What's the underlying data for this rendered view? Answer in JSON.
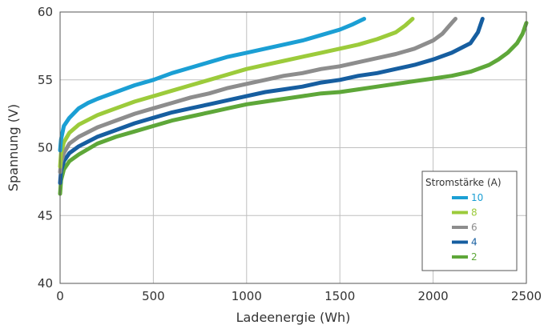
{
  "chart_data": {
    "type": "line",
    "xlabel": "Ladeenergie (Wh)",
    "ylabel": "Spannung (V)",
    "xlim": [
      0,
      2500
    ],
    "ylim": [
      40,
      60
    ],
    "xticks": [
      0,
      500,
      1000,
      1500,
      2000,
      2500
    ],
    "yticks": [
      40,
      45,
      50,
      55,
      60
    ],
    "grid": true,
    "legend": {
      "title": "Stromstärke (A)",
      "placement": "bottom-right"
    },
    "series": [
      {
        "name": "10",
        "color": "#1b9fd4",
        "x": [
          0,
          5,
          20,
          50,
          100,
          150,
          200,
          300,
          400,
          500,
          600,
          700,
          800,
          900,
          1000,
          1100,
          1200,
          1300,
          1400,
          1500,
          1570,
          1630
        ],
        "y": [
          49.8,
          50.6,
          51.6,
          52.2,
          52.9,
          53.3,
          53.6,
          54.1,
          54.6,
          55.0,
          55.5,
          55.9,
          56.3,
          56.7,
          57.0,
          57.3,
          57.6,
          57.9,
          58.3,
          58.7,
          59.1,
          59.5
        ]
      },
      {
        "name": "8",
        "color": "#9ccb3b",
        "x": [
          0,
          5,
          20,
          50,
          100,
          200,
          300,
          400,
          500,
          600,
          700,
          800,
          900,
          1000,
          1100,
          1200,
          1300,
          1400,
          1500,
          1600,
          1700,
          1800,
          1850,
          1890
        ],
        "y": [
          48.6,
          49.6,
          50.4,
          51.1,
          51.7,
          52.4,
          52.9,
          53.4,
          53.8,
          54.2,
          54.6,
          55.0,
          55.4,
          55.8,
          56.1,
          56.4,
          56.7,
          57.0,
          57.3,
          57.6,
          58.0,
          58.5,
          59.0,
          59.5
        ]
      },
      {
        "name": "6",
        "color": "#8d8d8d",
        "x": [
          0,
          5,
          20,
          50,
          100,
          200,
          300,
          400,
          500,
          600,
          700,
          800,
          900,
          1000,
          1100,
          1200,
          1300,
          1400,
          1500,
          1600,
          1700,
          1800,
          1900,
          2000,
          2050,
          2100,
          2120
        ],
        "y": [
          48.2,
          48.9,
          49.6,
          50.3,
          50.8,
          51.5,
          52.0,
          52.5,
          52.9,
          53.3,
          53.7,
          54.0,
          54.4,
          54.7,
          55.0,
          55.3,
          55.5,
          55.8,
          56.0,
          56.3,
          56.6,
          56.9,
          57.3,
          57.9,
          58.4,
          59.2,
          59.5
        ]
      },
      {
        "name": "4",
        "color": "#165ea0",
        "x": [
          0,
          5,
          20,
          50,
          100,
          200,
          300,
          400,
          500,
          600,
          700,
          800,
          900,
          1000,
          1100,
          1200,
          1300,
          1400,
          1500,
          1600,
          1700,
          1800,
          1900,
          2000,
          2100,
          2200,
          2240,
          2265
        ],
        "y": [
          47.4,
          48.3,
          49.0,
          49.6,
          50.1,
          50.8,
          51.3,
          51.8,
          52.2,
          52.6,
          52.9,
          53.2,
          53.5,
          53.8,
          54.1,
          54.3,
          54.5,
          54.8,
          55.0,
          55.3,
          55.5,
          55.8,
          56.1,
          56.5,
          57.0,
          57.7,
          58.5,
          59.5
        ]
      },
      {
        "name": "2",
        "color": "#5ea739",
        "x": [
          0,
          5,
          20,
          50,
          100,
          200,
          300,
          400,
          500,
          600,
          700,
          800,
          900,
          1000,
          1100,
          1200,
          1300,
          1400,
          1500,
          1600,
          1700,
          1800,
          1900,
          2000,
          2100,
          2200,
          2300,
          2350,
          2400,
          2450,
          2480,
          2500
        ],
        "y": [
          46.6,
          47.6,
          48.4,
          49.0,
          49.5,
          50.3,
          50.8,
          51.2,
          51.6,
          52.0,
          52.3,
          52.6,
          52.9,
          53.2,
          53.4,
          53.6,
          53.8,
          54.0,
          54.1,
          54.3,
          54.5,
          54.7,
          54.9,
          55.1,
          55.3,
          55.6,
          56.1,
          56.5,
          57.0,
          57.7,
          58.4,
          59.2
        ]
      }
    ]
  }
}
